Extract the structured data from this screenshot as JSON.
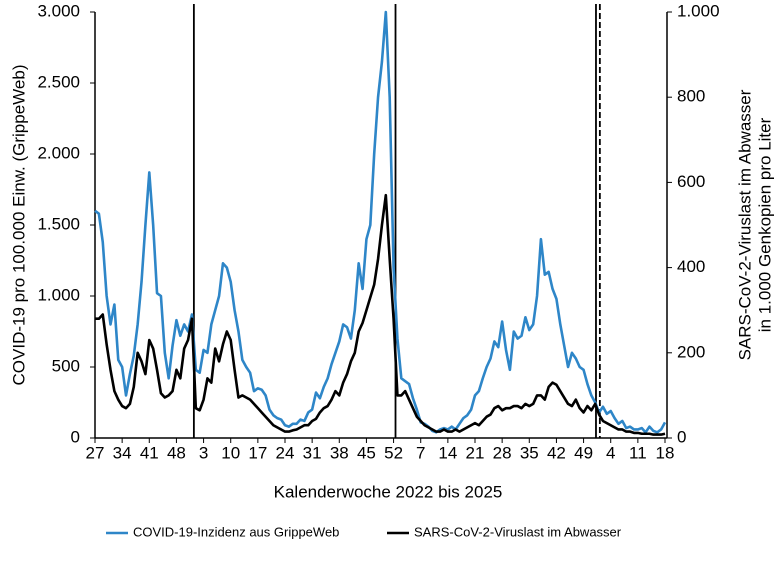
{
  "chart_data": {
    "type": "line",
    "xlabel": "Kalenderwoche 2022 bis 2025",
    "ylabel": "COVID-19 pro 100.000 Einw. (GrippeWeb)",
    "y2label": [
      "SARS-CoV-2-Viruslast im Abwasser",
      "in 1.000 Genkopien pro Liter"
    ],
    "categories": [
      "27",
      null,
      null,
      null,
      null,
      null,
      null,
      "34",
      null,
      null,
      null,
      null,
      null,
      null,
      "41",
      null,
      null,
      null,
      null,
      null,
      null,
      "48",
      null,
      null,
      null,
      null,
      null,
      null,
      "3",
      null,
      null,
      null,
      null,
      null,
      null,
      "10",
      null,
      null,
      null,
      null,
      null,
      null,
      "17",
      null,
      null,
      null,
      null,
      null,
      null,
      "24",
      null,
      null,
      null,
      null,
      null,
      null,
      "31",
      null,
      null,
      null,
      null,
      null,
      null,
      "38",
      null,
      null,
      null,
      null,
      null,
      null,
      "45",
      null,
      null,
      null,
      null,
      null,
      null,
      "52",
      null,
      null,
      null,
      null,
      null,
      null,
      "7",
      null,
      null,
      null,
      null,
      null,
      null,
      "14",
      null,
      null,
      null,
      null,
      null,
      null,
      "21",
      null,
      null,
      null,
      null,
      null,
      null,
      "28",
      null,
      null,
      null,
      null,
      null,
      null,
      "35",
      null,
      null,
      null,
      null,
      null,
      null,
      "42",
      null,
      null,
      null,
      null,
      null,
      null,
      "49",
      null,
      null,
      null,
      null,
      null,
      null,
      "4",
      null,
      null,
      null,
      null,
      null,
      null,
      "11",
      null,
      null,
      null,
      null,
      null,
      null,
      "18"
    ],
    "ylim": [
      0,
      3000
    ],
    "yticks": [
      0,
      500,
      {
        "value": 1000,
        "label": "1.000"
      },
      {
        "value": 1500,
        "label": "1.500"
      },
      {
        "value": 2000,
        "label": "2.000"
      },
      {
        "value": 2500,
        "label": "2.500"
      },
      {
        "value": 3000,
        "label": "3.000"
      }
    ],
    "y2lim": [
      0,
      1000
    ],
    "y2ticks": [
      0,
      200,
      400,
      600,
      800,
      {
        "value": 1000,
        "label": "1.000"
      }
    ],
    "legend": "bottom",
    "series": [
      {
        "name": "COVID-19-Inzidenz aus GrippeWeb",
        "color": "#2e86c8",
        "values": [
          1600,
          1580,
          1380,
          1000,
          800,
          940,
          550,
          500,
          300,
          450,
          580,
          800,
          1100,
          1500,
          1870,
          1500,
          1020,
          1000,
          600,
          420,
          650,
          830,
          720,
          800,
          750,
          870,
          480,
          460,
          620,
          600,
          800,
          900,
          1000,
          1230,
          1200,
          1100,
          900,
          750,
          550,
          500,
          460,
          330,
          350,
          340,
          300,
          200,
          160,
          140,
          130,
          90,
          80,
          100,
          100,
          130,
          120,
          180,
          200,
          320,
          280,
          360,
          420,
          520,
          600,
          680,
          800,
          780,
          700,
          900,
          1230,
          1050,
          1400,
          1500,
          2000,
          2400,
          2650,
          3000,
          2400,
          1200,
          700,
          420,
          400,
          380,
          280,
          200,
          110,
          100,
          80,
          50,
          40,
          60,
          70,
          60,
          80,
          60,
          100,
          140,
          160,
          200,
          300,
          330,
          420,
          500,
          560,
          680,
          640,
          820,
          620,
          480,
          750,
          700,
          720,
          850,
          760,
          800,
          1000,
          1400,
          1150,
          1170,
          1050,
          980,
          800,
          650,
          500,
          600,
          560,
          500,
          480,
          380,
          300,
          250,
          180,
          220,
          170,
          190,
          140,
          100,
          120,
          70,
          80,
          60,
          60,
          70,
          40,
          80,
          50,
          40,
          60,
          110
        ]
      },
      {
        "name": "SARS-CoV-2-Viruslast im Abwasser",
        "color": "#000000",
        "axis": "y2",
        "values": [
          280,
          280,
          290,
          220,
          160,
          110,
          90,
          75,
          70,
          80,
          120,
          200,
          180,
          150,
          230,
          210,
          160,
          105,
          95,
          100,
          110,
          160,
          140,
          210,
          230,
          280,
          70,
          65,
          90,
          140,
          130,
          210,
          180,
          220,
          250,
          230,
          160,
          95,
          100,
          95,
          90,
          80,
          70,
          60,
          50,
          40,
          30,
          25,
          20,
          15,
          15,
          18,
          20,
          25,
          30,
          30,
          40,
          45,
          60,
          70,
          75,
          90,
          110,
          100,
          130,
          150,
          180,
          200,
          250,
          270,
          300,
          330,
          360,
          420,
          500,
          570,
          420,
          280,
          100,
          100,
          110,
          90,
          70,
          50,
          40,
          30,
          25,
          20,
          15,
          15,
          20,
          15,
          15,
          20,
          15,
          20,
          25,
          30,
          35,
          30,
          40,
          50,
          55,
          70,
          75,
          65,
          70,
          70,
          75,
          75,
          70,
          80,
          75,
          80,
          100,
          100,
          90,
          120,
          130,
          125,
          110,
          95,
          80,
          75,
          90,
          70,
          60,
          75,
          65,
          80,
          55,
          40,
          35,
          30,
          25,
          20,
          20,
          15,
          15,
          12,
          12,
          10,
          10,
          10,
          8,
          8,
          8,
          10
        ]
      }
    ]
  }
}
